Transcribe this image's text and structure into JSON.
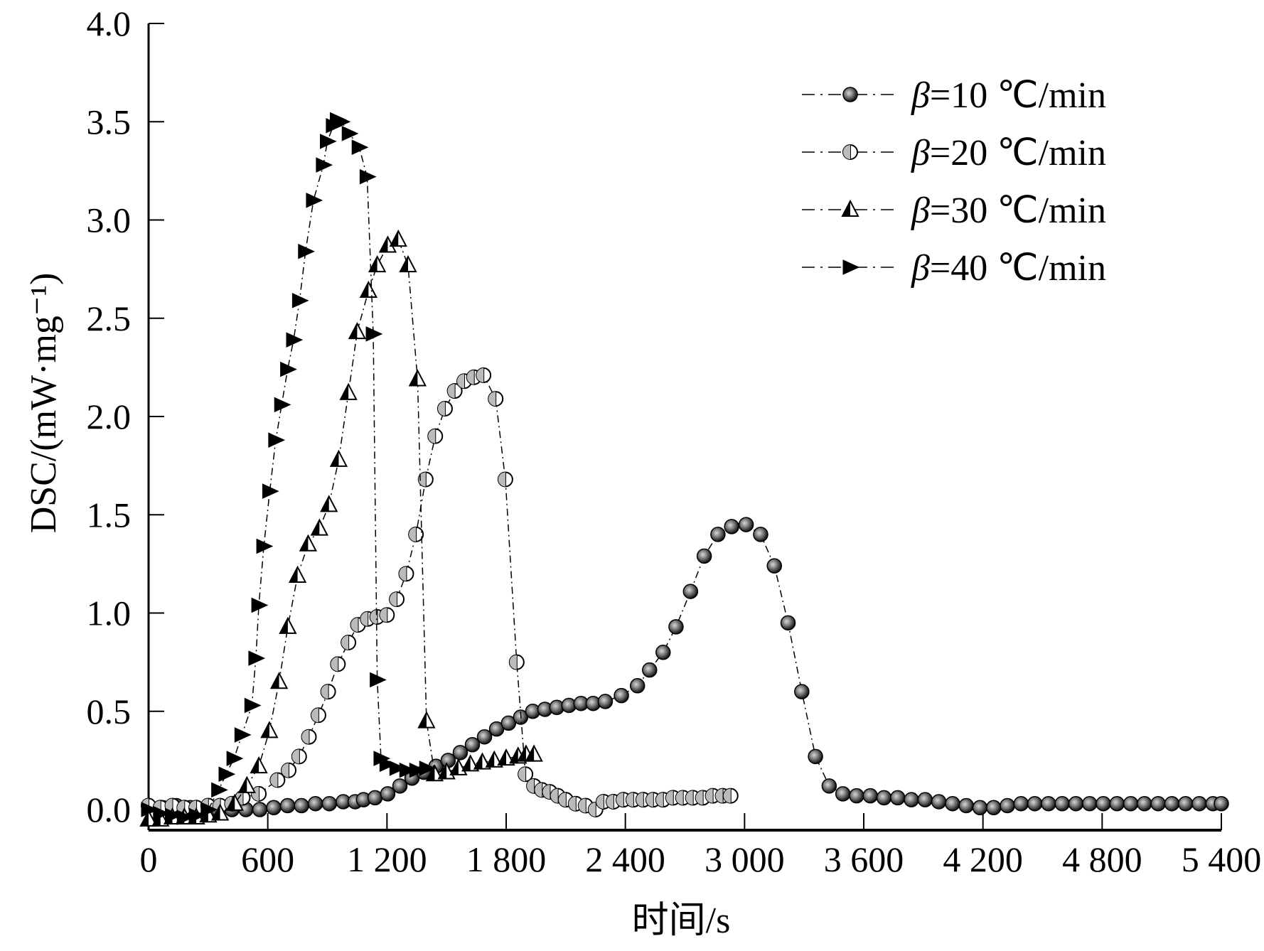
{
  "chart_data": {
    "type": "scatter",
    "title": "",
    "xlabel": "时间/s",
    "ylabel": "DSC/(mW·mg⁻¹)",
    "xlim": [
      0,
      5400
    ],
    "ylim": [
      0,
      4.0
    ],
    "xticks": [
      0,
      600,
      1200,
      1800,
      2400,
      3000,
      3600,
      4200,
      4800,
      5400
    ],
    "xtick_labels": [
      "0",
      "600",
      "1 200",
      "1 800",
      "2 400",
      "3 000",
      "3 600",
      "4 200",
      "4 800",
      "5 400"
    ],
    "yticks": [
      0,
      0.5,
      1.0,
      1.5,
      2.0,
      2.5,
      3.0,
      3.5,
      4.0
    ],
    "ytick_labels": [
      "0.0",
      "0.5",
      "1.0",
      "1.5",
      "2.0",
      "2.5",
      "3.0",
      "3.5",
      "4.0"
    ],
    "grid": false,
    "legend_position": "top-right",
    "series": [
      {
        "name": "β=10 ℃/min",
        "prefix": "β",
        "suffix": "=10 ℃/min",
        "marker": "filled-circle",
        "x": [
          0,
          70,
          140,
          210,
          280,
          350,
          420,
          490,
          560,
          630,
          700,
          770,
          840,
          910,
          980,
          1040,
          1082,
          1140,
          1204,
          1265,
          1326,
          1386,
          1447,
          1508,
          1569,
          1630,
          1691,
          1752,
          1812,
          1873,
          1934,
          1995,
          2055,
          2116,
          2177,
          2238,
          2299,
          2380,
          2461,
          2522,
          2590,
          2655,
          2728,
          2797,
          2866,
          2935,
          3008,
          3081,
          3150,
          3219,
          3288,
          3357,
          3426,
          3495,
          3564,
          3633,
          3702,
          3771,
          3840,
          3909,
          3978,
          4047,
          4116,
          4185,
          4254,
          4323,
          4392,
          4461,
          4530,
          4599,
          4668,
          4737,
          4806,
          4875,
          4944,
          5013,
          5082,
          5151,
          5220,
          5289,
          5358,
          5400
        ],
        "y": [
          0.02,
          0.01,
          0.02,
          0.01,
          0.0,
          0.0,
          0.0,
          0.0,
          0.0,
          0.01,
          0.02,
          0.02,
          0.03,
          0.03,
          0.04,
          0.04,
          0.05,
          0.06,
          0.08,
          0.12,
          0.16,
          0.19,
          0.22,
          0.25,
          0.29,
          0.33,
          0.37,
          0.41,
          0.44,
          0.47,
          0.5,
          0.51,
          0.52,
          0.53,
          0.54,
          0.54,
          0.55,
          0.58,
          0.63,
          0.71,
          0.8,
          0.93,
          1.11,
          1.29,
          1.4,
          1.44,
          1.45,
          1.4,
          1.24,
          0.95,
          0.6,
          0.27,
          0.12,
          0.08,
          0.07,
          0.07,
          0.06,
          0.06,
          0.05,
          0.05,
          0.04,
          0.03,
          0.02,
          0.01,
          0.01,
          0.02,
          0.03,
          0.03,
          0.03,
          0.03,
          0.03,
          0.03,
          0.03,
          0.03,
          0.03,
          0.03,
          0.03,
          0.03,
          0.03,
          0.03,
          0.03,
          0.03
        ]
      },
      {
        "name": "β=20 ℃/min",
        "prefix": "β",
        "suffix": "=20 ℃/min",
        "marker": "half-circle",
        "x": [
          0,
          60,
          120,
          180,
          240,
          300,
          360,
          420,
          474,
          555,
          649,
          705,
          758,
          807,
          855,
          904,
          953,
          1006,
          1054,
          1103,
          1151,
          1200,
          1249,
          1297,
          1346,
          1395,
          1443,
          1492,
          1541,
          1589,
          1638,
          1686,
          1747,
          1796,
          1853,
          1897,
          1940,
          1980,
          2020,
          2060,
          2100,
          2150,
          2200,
          2250,
          2290,
          2340,
          2390,
          2440,
          2490,
          2540,
          2590,
          2640,
          2690,
          2740,
          2790,
          2840,
          2890,
          2930
        ],
        "y": [
          0.02,
          0.01,
          0.02,
          0.01,
          0.01,
          0.02,
          0.02,
          0.03,
          0.06,
          0.08,
          0.15,
          0.2,
          0.27,
          0.37,
          0.48,
          0.6,
          0.74,
          0.85,
          0.94,
          0.97,
          0.98,
          0.99,
          1.07,
          1.2,
          1.4,
          1.68,
          1.9,
          2.04,
          2.13,
          2.18,
          2.2,
          2.21,
          2.09,
          1.68,
          0.75,
          0.18,
          0.12,
          0.1,
          0.09,
          0.07,
          0.05,
          0.03,
          0.02,
          0.0,
          0.04,
          0.04,
          0.05,
          0.05,
          0.05,
          0.05,
          0.05,
          0.06,
          0.06,
          0.06,
          0.06,
          0.07,
          0.07,
          0.07
        ]
      },
      {
        "name": "β=30 ℃/min",
        "prefix": "β",
        "suffix": "=30 ℃/min",
        "marker": "half-triangle-up",
        "x": [
          0,
          60,
          120,
          180,
          240,
          300,
          360,
          434,
          495,
          555,
          608,
          657,
          701,
          750,
          803,
          860,
          908,
          957,
          1006,
          1050,
          1107,
          1151,
          1204,
          1257,
          1306,
          1354,
          1399,
          1440,
          1500,
          1560,
          1620,
          1680,
          1740,
          1800,
          1860,
          1900,
          1940
        ],
        "y": [
          -0.05,
          -0.05,
          -0.04,
          -0.04,
          -0.04,
          -0.03,
          -0.02,
          0.03,
          0.12,
          0.22,
          0.4,
          0.65,
          0.93,
          1.19,
          1.35,
          1.43,
          1.55,
          1.78,
          2.12,
          2.43,
          2.64,
          2.77,
          2.87,
          2.9,
          2.77,
          2.19,
          0.45,
          0.18,
          0.19,
          0.21,
          0.23,
          0.24,
          0.25,
          0.26,
          0.27,
          0.28,
          0.28
        ]
      },
      {
        "name": "β=40 ℃/min",
        "prefix": "β",
        "suffix": "=40 ℃/min",
        "marker": "filled-triangle-right",
        "x": [
          0,
          60,
          120,
          180,
          240,
          300,
          353,
          390,
          430,
          470,
          520,
          540,
          555,
          580,
          610,
          640,
          670,
          700,
          730,
          760,
          790,
          830,
          880,
          900,
          930,
          950,
          970,
          1010,
          1060,
          1100,
          1131,
          1151,
          1170,
          1200,
          1250,
          1300,
          1350,
          1400
        ],
        "y": [
          0.0,
          -0.02,
          -0.03,
          -0.04,
          -0.03,
          0.0,
          0.1,
          0.18,
          0.26,
          0.38,
          0.53,
          0.77,
          1.04,
          1.34,
          1.62,
          1.88,
          2.06,
          2.24,
          2.39,
          2.59,
          2.84,
          3.1,
          3.28,
          3.4,
          3.48,
          3.51,
          3.5,
          3.44,
          3.37,
          3.22,
          2.42,
          0.66,
          0.26,
          0.23,
          0.21,
          0.2,
          0.2,
          0.21
        ]
      }
    ]
  }
}
